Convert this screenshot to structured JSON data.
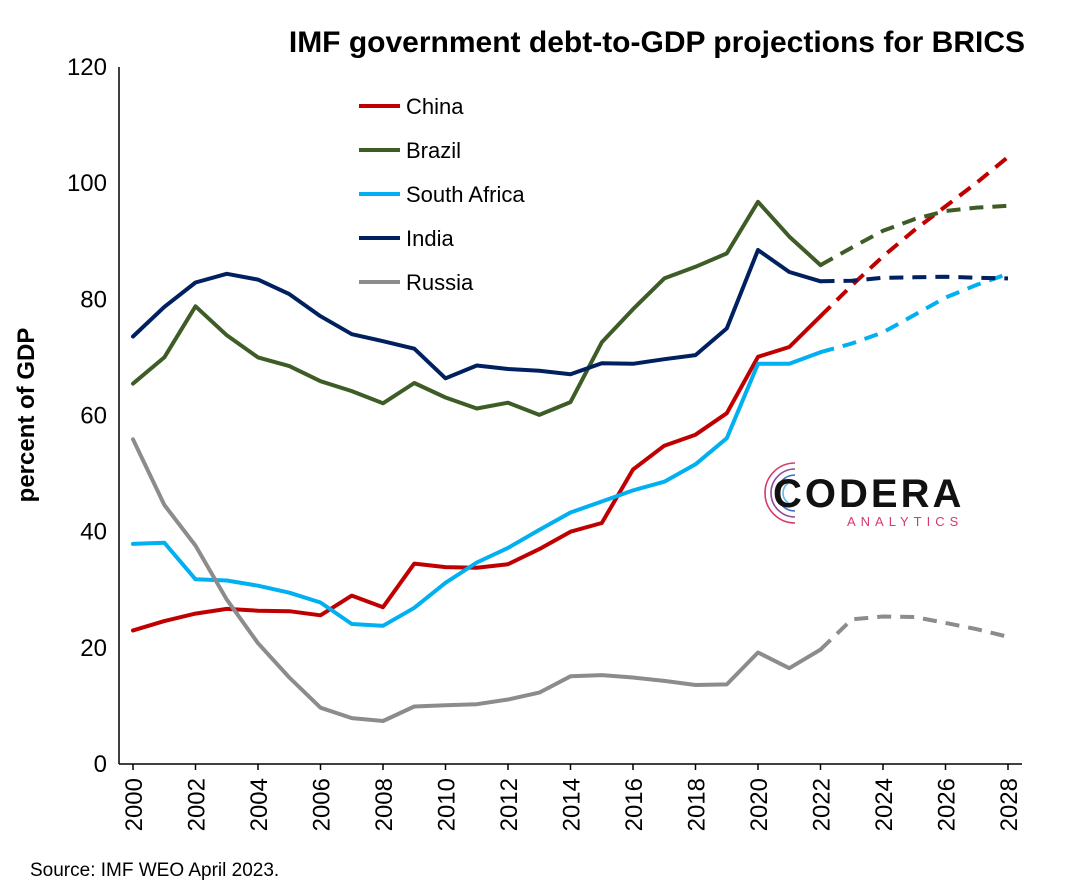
{
  "chart_data": {
    "type": "line",
    "title": "IMF government debt-to-GDP projections for BRICS",
    "xlabel": "",
    "ylabel": "percent of GDP",
    "source": "Source: IMF WEO April 2023.",
    "xlim": [
      2000,
      2028
    ],
    "ylim": [
      0,
      120
    ],
    "x_ticks": [
      "2000",
      "2002",
      "2004",
      "2006",
      "2008",
      "2010",
      "2012",
      "2014",
      "2016",
      "2018",
      "2020",
      "2022",
      "2024",
      "2026",
      "2028"
    ],
    "y_ticks": [
      "0",
      "20",
      "40",
      "60",
      "80",
      "100",
      "120"
    ],
    "grid": false,
    "legend_position": "top-left",
    "projection_start": 2022,
    "x": [
      2000,
      2001,
      2002,
      2003,
      2004,
      2005,
      2006,
      2007,
      2008,
      2009,
      2010,
      2011,
      2012,
      2013,
      2014,
      2015,
      2016,
      2017,
      2018,
      2019,
      2020,
      2021,
      2022,
      2023,
      2024,
      2025,
      2026,
      2027,
      2028
    ],
    "series": [
      {
        "name": "China",
        "color": "#c00000",
        "values": [
          23.0,
          24.6,
          25.9,
          26.7,
          26.4,
          26.3,
          25.6,
          29.0,
          27.0,
          34.5,
          33.9,
          33.8,
          34.4,
          37.0,
          40.0,
          41.5,
          50.7,
          54.8,
          56.7,
          60.4,
          70.1,
          71.8,
          77.1,
          82.4,
          87.4,
          91.9,
          96.0,
          100.1,
          104.5
        ]
      },
      {
        "name": "Brazil",
        "color": "#3d5c26",
        "values": [
          65.5,
          70.0,
          78.8,
          73.8,
          70.0,
          68.5,
          65.9,
          64.2,
          62.1,
          65.6,
          63.1,
          61.2,
          62.2,
          60.1,
          62.3,
          72.6,
          78.3,
          83.6,
          85.6,
          87.9,
          96.8,
          90.8,
          85.9,
          88.9,
          91.8,
          93.8,
          95.2,
          95.8,
          96.1
        ]
      },
      {
        "name": "South Africa",
        "color": "#00b0f0",
        "values": [
          37.9,
          38.1,
          31.8,
          31.6,
          30.7,
          29.5,
          27.8,
          24.1,
          23.8,
          26.9,
          31.2,
          34.7,
          37.2,
          40.3,
          43.3,
          45.2,
          47.1,
          48.6,
          51.6,
          56.1,
          68.9,
          68.9,
          70.9,
          72.4,
          74.3,
          77.3,
          80.3,
          82.5,
          84.4
        ]
      },
      {
        "name": "India",
        "color": "#002060",
        "values": [
          73.6,
          78.7,
          82.9,
          84.4,
          83.4,
          80.9,
          77.1,
          74.0,
          72.8,
          71.5,
          66.4,
          68.6,
          68.0,
          67.7,
          67.1,
          69.0,
          68.9,
          69.7,
          70.4,
          75.0,
          88.5,
          84.7,
          83.1,
          83.2,
          83.7,
          83.8,
          83.9,
          83.7,
          83.6
        ]
      },
      {
        "name": "Russia",
        "color": "#8c8c8c",
        "values": [
          55.9,
          44.6,
          37.6,
          28.3,
          20.8,
          14.9,
          9.7,
          7.9,
          7.4,
          9.9,
          10.1,
          10.3,
          11.1,
          12.3,
          15.1,
          15.3,
          14.9,
          14.3,
          13.6,
          13.7,
          19.2,
          16.5,
          19.7,
          24.9,
          25.4,
          25.3,
          24.3,
          23.2,
          21.9
        ]
      }
    ]
  },
  "logo": {
    "name": "CODERA",
    "tagline": "ANALYTICS"
  }
}
